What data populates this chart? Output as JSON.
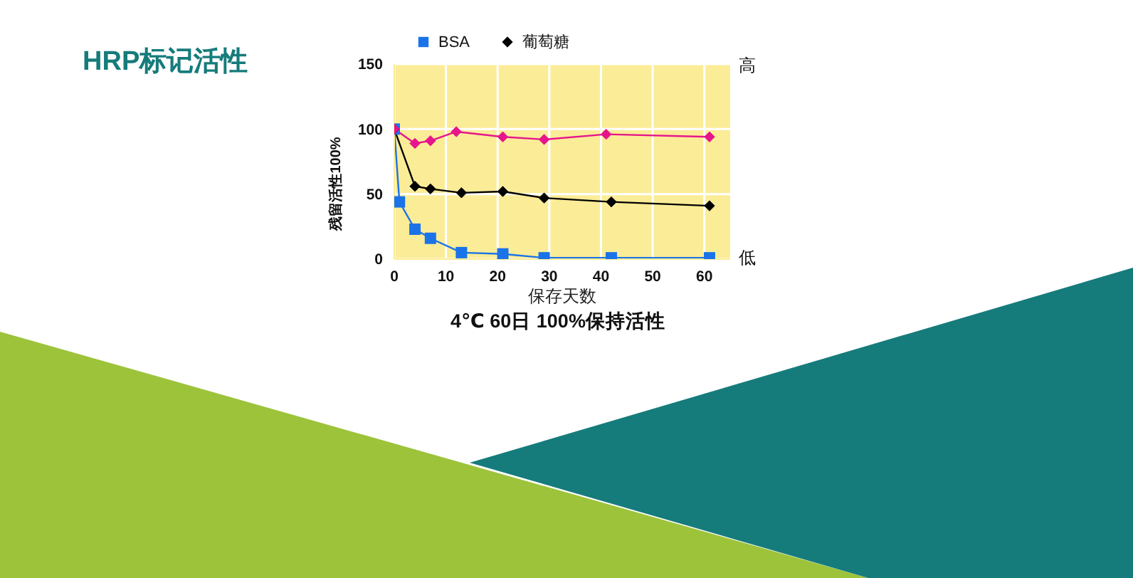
{
  "chart_data": {
    "type": "line",
    "title": "HRP标记活性",
    "xlabel": "保存天数",
    "ylabel": "残留活性100%",
    "annotations": [
      "高",
      "低",
      "4℃ 60日 100%保持活性"
    ],
    "xlim": [
      0,
      65
    ],
    "xticks": [
      0,
      10,
      20,
      30,
      40,
      50,
      60
    ],
    "ylim": [
      0,
      150
    ],
    "yticks": [
      0,
      50,
      100,
      150
    ],
    "grid": true,
    "legend": "top",
    "series": [
      {
        "name": "BSA",
        "color": "#1a73e8",
        "marker": "square",
        "x": [
          0,
          1,
          4,
          7,
          13,
          21,
          29,
          42,
          61
        ],
        "values": [
          100,
          44,
          23,
          16,
          5,
          4,
          1,
          1,
          1
        ]
      },
      {
        "name": "葡萄糖",
        "color": "#000000",
        "marker": "diamond",
        "x": [
          0,
          4,
          7,
          13,
          21,
          29,
          42,
          61
        ],
        "values": [
          100,
          56,
          54,
          51,
          52,
          47,
          44,
          41
        ]
      },
      {
        "color": "#e6158c",
        "marker": "diamond",
        "x": [
          0,
          4,
          7,
          12,
          21,
          29,
          41,
          61
        ],
        "values": [
          100,
          89,
          91,
          98,
          94,
          92,
          96,
          94
        ]
      }
    ]
  }
}
